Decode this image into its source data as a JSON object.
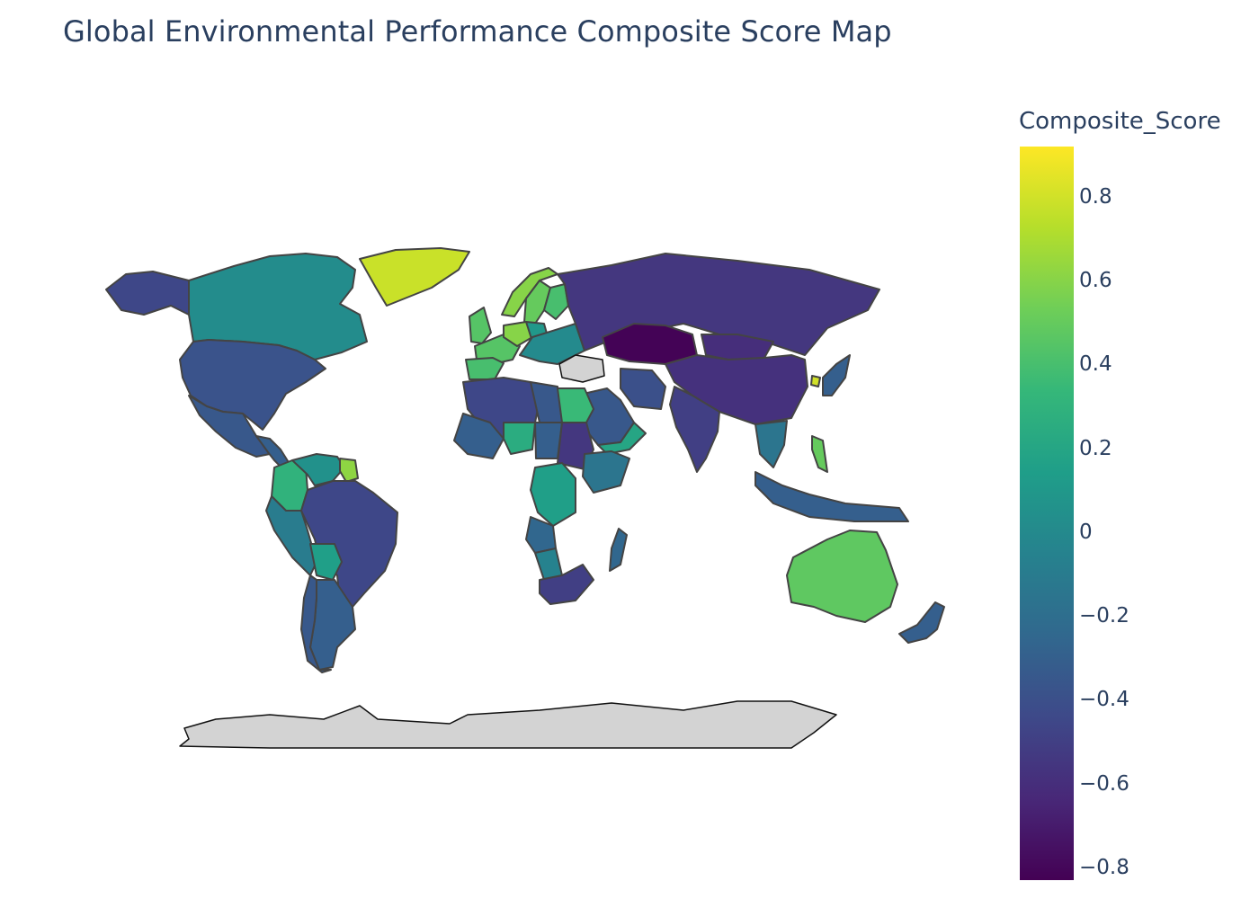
{
  "title": "Global Environmental Performance Composite Score Map",
  "colorbar": {
    "title": "Composite_Score",
    "colorscale": "Viridis",
    "min": -0.83,
    "max": 0.92,
    "ticks": [
      {
        "value": 0.8,
        "label": "0.8"
      },
      {
        "value": 0.6,
        "label": "0.6"
      },
      {
        "value": 0.4,
        "label": "0.4"
      },
      {
        "value": 0.2,
        "label": "0.2"
      },
      {
        "value": 0,
        "label": "0"
      },
      {
        "value": -0.2,
        "label": "−0.2"
      },
      {
        "value": -0.4,
        "label": "−0.4"
      },
      {
        "value": -0.6,
        "label": "−0.6"
      },
      {
        "value": -0.8,
        "label": "−0.8"
      }
    ]
  },
  "missing_color": "#d3d3d3",
  "regions": [
    {
      "name": "Canada",
      "value": 0.02
    },
    {
      "name": "United States",
      "value": -0.38
    },
    {
      "name": "Alaska",
      "value": -0.45
    },
    {
      "name": "Greenland",
      "value": 0.78
    },
    {
      "name": "Mexico",
      "value": -0.35
    },
    {
      "name": "Central America",
      "value": -0.3
    },
    {
      "name": "Colombia",
      "value": 0.3
    },
    {
      "name": "Venezuela",
      "value": 0.05
    },
    {
      "name": "Guyana",
      "value": 0.62
    },
    {
      "name": "Peru",
      "value": -0.1
    },
    {
      "name": "Brazil",
      "value": -0.45
    },
    {
      "name": "Bolivia",
      "value": 0.15
    },
    {
      "name": "Argentina",
      "value": -0.3
    },
    {
      "name": "Chile",
      "value": -0.35
    },
    {
      "name": "Norway",
      "value": 0.6
    },
    {
      "name": "Sweden",
      "value": 0.5
    },
    {
      "name": "Finland",
      "value": 0.4
    },
    {
      "name": "United Kingdom",
      "value": 0.45
    },
    {
      "name": "France",
      "value": 0.45
    },
    {
      "name": "Spain",
      "value": 0.4
    },
    {
      "name": "Germany",
      "value": 0.6
    },
    {
      "name": "Poland",
      "value": 0.1
    },
    {
      "name": "Eastern Europe",
      "value": 0.0
    },
    {
      "name": "Russia",
      "value": -0.55
    },
    {
      "name": "Kazakhstan",
      "value": -0.82
    },
    {
      "name": "Mongolia",
      "value": -0.6
    },
    {
      "name": "China",
      "value": -0.58
    },
    {
      "name": "India",
      "value": -0.5
    },
    {
      "name": "Iran",
      "value": -0.4
    },
    {
      "name": "Saudi Arabia",
      "value": -0.35
    },
    {
      "name": "Yemen",
      "value": 0.2
    },
    {
      "name": "Algeria",
      "value": -0.45
    },
    {
      "name": "Libya",
      "value": -0.35
    },
    {
      "name": "Egypt",
      "value": 0.35
    },
    {
      "name": "Niger",
      "value": 0.25
    },
    {
      "name": "Mali",
      "value": -0.3
    },
    {
      "name": "Chad",
      "value": -0.3
    },
    {
      "name": "Sudan",
      "value": -0.55
    },
    {
      "name": "Ethiopia",
      "value": -0.15
    },
    {
      "name": "DR Congo",
      "value": 0.15
    },
    {
      "name": "Angola",
      "value": -0.25
    },
    {
      "name": "Namibia",
      "value": -0.05
    },
    {
      "name": "South Africa",
      "value": -0.5
    },
    {
      "name": "Madagascar",
      "value": -0.25
    },
    {
      "name": "Japan",
      "value": -0.3
    },
    {
      "name": "South Korea",
      "value": 0.8
    },
    {
      "name": "Southeast Asia",
      "value": -0.15
    },
    {
      "name": "Philippines",
      "value": 0.5
    },
    {
      "name": "Indonesia",
      "value": -0.3
    },
    {
      "name": "Australia",
      "value": 0.48
    },
    {
      "name": "New Zealand",
      "value": -0.3
    },
    {
      "name": "Turkey",
      "value": null
    },
    {
      "name": "Antarctica",
      "value": null
    }
  ]
}
